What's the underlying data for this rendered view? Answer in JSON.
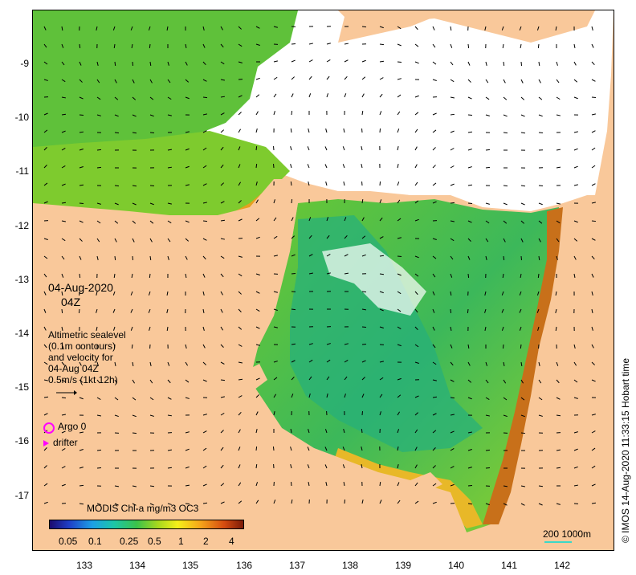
{
  "map": {
    "date": "04-Aug-2020",
    "time": "04Z",
    "legend_lines": [
      "Altimetric sealevel",
      "(0.1m contours)",
      "and velocity for",
      "04-Aug 04Z",
      "0.5m/s (1kt 12h)"
    ],
    "argo_label": "Argo 0",
    "drifter_label": "drifter",
    "colorbar_title": "MODIS Chl-a mg/m3 OC3",
    "colorbar_ticks": [
      "0.05",
      "0.1",
      "0.25",
      "0.5",
      "1",
      "2",
      "4"
    ],
    "scalebar_label": "200  1000m",
    "credit": "© IMOS 14-Aug-2020 11:33:15 Hobart time",
    "y_ticks": [
      "-9",
      "-10",
      "-11",
      "-12",
      "-13",
      "-14",
      "-15",
      "-16",
      "-17"
    ],
    "x_ticks": [
      "133",
      "134",
      "135",
      "136",
      "137",
      "138",
      "139",
      "140",
      "141",
      "142"
    ],
    "colors": {
      "land": "#f9c89a",
      "low_chl": "#1b0a6e",
      "high_chl": "#7a1a08",
      "marker": "#ff00ff",
      "scalebar": "#3ad8c8"
    }
  }
}
